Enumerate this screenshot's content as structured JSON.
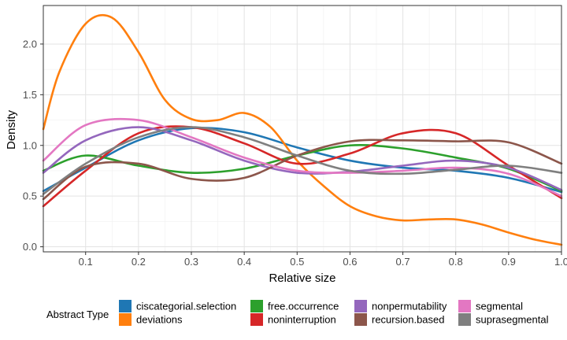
{
  "chart_data": {
    "type": "line",
    "title": "",
    "xlabel": "Relative size",
    "ylabel": "Density",
    "xlim": [
      0.02,
      1.0
    ],
    "ylim": [
      -0.05,
      2.38
    ],
    "x_ticks": [
      0.1,
      0.2,
      0.3,
      0.4,
      0.5,
      0.6,
      0.7,
      0.8,
      0.9,
      1.0
    ],
    "x_tick_labels": [
      "0.1",
      "0.2",
      "0.3",
      "0.4",
      "0.5",
      "0.6",
      "0.7",
      "0.8",
      "0.9",
      "1.0"
    ],
    "y_ticks": [
      0.0,
      0.5,
      1.0,
      1.5,
      2.0
    ],
    "y_tick_labels": [
      "0.0",
      "0.5",
      "1.0",
      "1.5",
      "2.0"
    ],
    "grid": true,
    "legend": {
      "title": "Abstract Type",
      "position": "bottom"
    },
    "series": [
      {
        "name": "ciscategorial.selection",
        "color": "#1f77b4",
        "x": [
          0.02,
          0.1,
          0.2,
          0.3,
          0.4,
          0.5,
          0.6,
          0.7,
          0.8,
          0.9,
          1.0
        ],
        "y": [
          0.55,
          0.78,
          1.05,
          1.17,
          1.13,
          0.98,
          0.85,
          0.78,
          0.75,
          0.68,
          0.54
        ]
      },
      {
        "name": "deviations",
        "color": "#ff7f0e",
        "x": [
          0.02,
          0.05,
          0.1,
          0.15,
          0.2,
          0.25,
          0.3,
          0.35,
          0.4,
          0.45,
          0.5,
          0.55,
          0.6,
          0.65,
          0.7,
          0.75,
          0.8,
          0.85,
          0.9,
          0.95,
          1.0
        ],
        "y": [
          1.16,
          1.72,
          2.2,
          2.26,
          1.92,
          1.45,
          1.26,
          1.25,
          1.32,
          1.18,
          0.85,
          0.6,
          0.4,
          0.3,
          0.26,
          0.27,
          0.27,
          0.22,
          0.14,
          0.07,
          0.02
        ]
      },
      {
        "name": "free.occurrence",
        "color": "#2ca02c",
        "x": [
          0.02,
          0.1,
          0.2,
          0.3,
          0.4,
          0.5,
          0.6,
          0.7,
          0.8,
          0.9,
          1.0
        ],
        "y": [
          0.75,
          0.9,
          0.8,
          0.73,
          0.77,
          0.9,
          1.0,
          0.97,
          0.88,
          0.77,
          0.55
        ]
      },
      {
        "name": "noninterruption",
        "color": "#d62728",
        "x": [
          0.02,
          0.1,
          0.2,
          0.3,
          0.4,
          0.5,
          0.6,
          0.7,
          0.8,
          0.9,
          1.0
        ],
        "y": [
          0.4,
          0.75,
          1.12,
          1.18,
          1.02,
          0.82,
          0.92,
          1.12,
          1.12,
          0.8,
          0.48
        ]
      },
      {
        "name": "nonpermutability",
        "color": "#9467bd",
        "x": [
          0.02,
          0.1,
          0.2,
          0.3,
          0.4,
          0.5,
          0.6,
          0.7,
          0.8,
          0.9,
          1.0
        ],
        "y": [
          0.73,
          1.05,
          1.18,
          1.05,
          0.85,
          0.73,
          0.74,
          0.8,
          0.85,
          0.78,
          0.56
        ]
      },
      {
        "name": "recursion.based",
        "color": "#8c564b",
        "x": [
          0.02,
          0.1,
          0.2,
          0.3,
          0.4,
          0.5,
          0.6,
          0.7,
          0.8,
          0.9,
          1.0
        ],
        "y": [
          0.47,
          0.79,
          0.82,
          0.67,
          0.68,
          0.9,
          1.04,
          1.05,
          1.04,
          1.03,
          0.82
        ]
      },
      {
        "name": "segmental",
        "color": "#e377c2",
        "x": [
          0.02,
          0.1,
          0.2,
          0.3,
          0.4,
          0.5,
          0.6,
          0.7,
          0.8,
          0.9,
          1.0
        ],
        "y": [
          0.85,
          1.2,
          1.25,
          1.08,
          0.88,
          0.75,
          0.73,
          0.75,
          0.78,
          0.72,
          0.5
        ]
      },
      {
        "name": "suprasegmental",
        "color": "#7f7f7f",
        "x": [
          0.02,
          0.1,
          0.2,
          0.3,
          0.4,
          0.5,
          0.6,
          0.7,
          0.8,
          0.9,
          1.0
        ],
        "y": [
          0.52,
          0.82,
          1.08,
          1.18,
          1.08,
          0.9,
          0.75,
          0.72,
          0.76,
          0.8,
          0.73
        ]
      }
    ]
  }
}
